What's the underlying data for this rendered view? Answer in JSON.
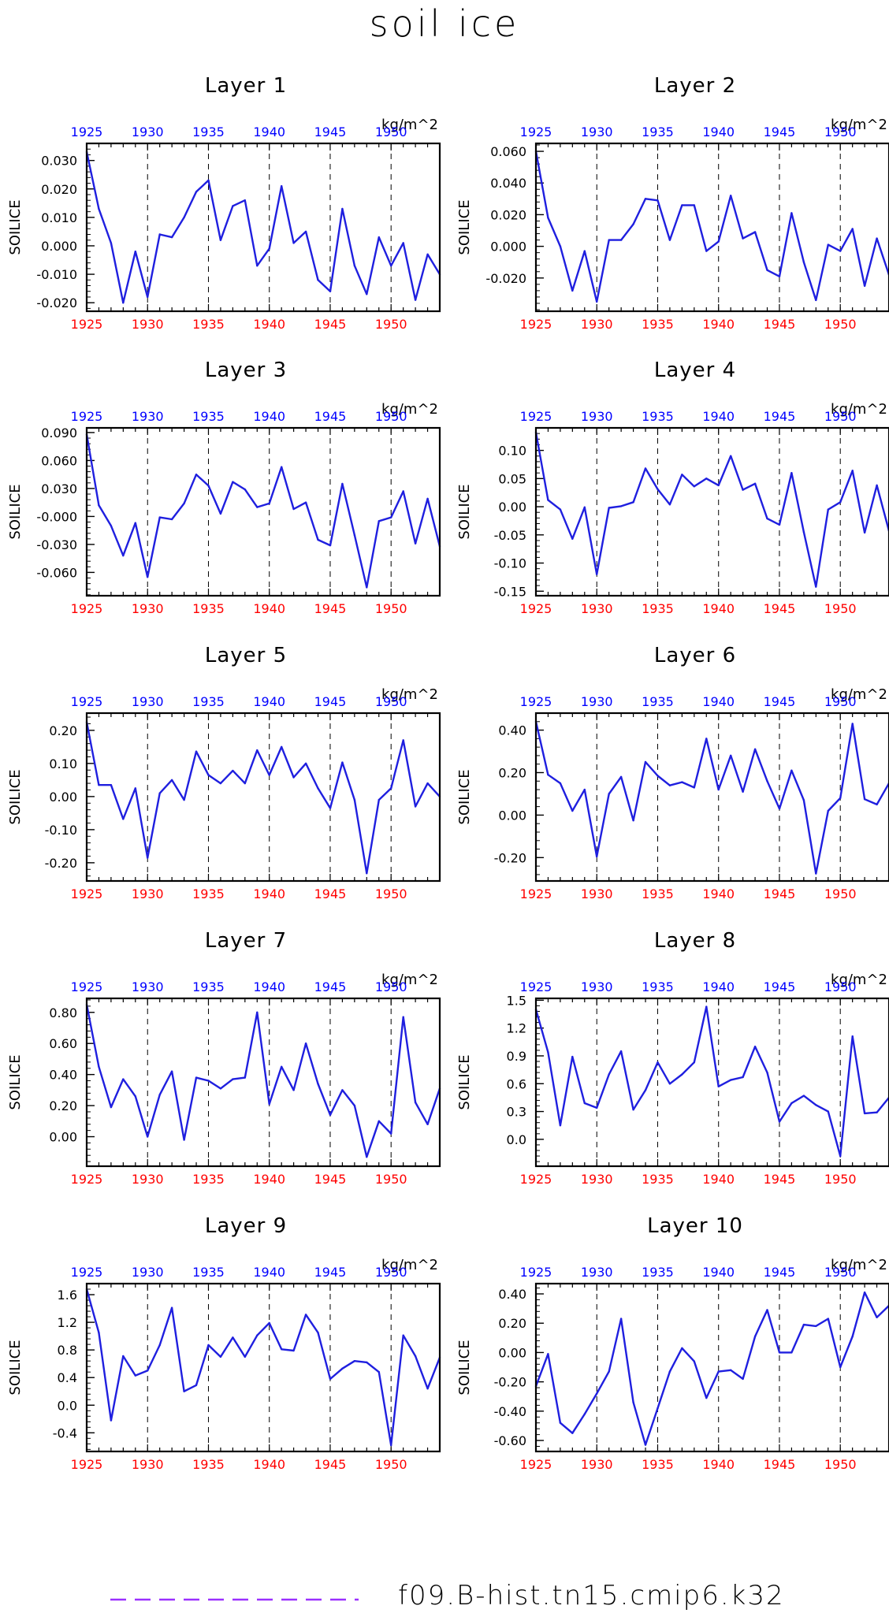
{
  "page": {
    "title": "soil ice",
    "legend_label": "f09.B-hist.tn15.cmip6.k32"
  },
  "colors": {
    "series": "#1f1fdf",
    "top_axis_labels": "#0000ff",
    "bottom_axis_labels": "#ff0000",
    "legend_line": "#9b30ff"
  },
  "chart_data": [
    {
      "type": "line",
      "title": "Layer 1",
      "ylabel": "SOILICE",
      "units": "kg/m^2",
      "x_ticks": [
        1925,
        1930,
        1935,
        1940,
        1945,
        1950
      ],
      "xlim": [
        1925,
        1954
      ],
      "ylim": [
        -0.023,
        0.036
      ],
      "y_ticks": [
        0.03,
        0.02,
        0.01,
        0.0,
        -0.01,
        -0.02
      ],
      "y_tick_labels": [
        "0.030",
        "0.020",
        "0.010",
        "0.000",
        "-0.010",
        "-0.020"
      ],
      "x": [
        1925,
        1926,
        1927,
        1928,
        1929,
        1930,
        1931,
        1932,
        1933,
        1934,
        1935,
        1936,
        1937,
        1938,
        1939,
        1940,
        1941,
        1942,
        1943,
        1944,
        1945,
        1946,
        1947,
        1948,
        1949,
        1950,
        1951,
        1952,
        1953,
        1954
      ],
      "series": [
        {
          "name": "f09.B-hist.tn15.cmip6.k32",
          "values": [
            0.033,
            0.013,
            0.001,
            -0.02,
            -0.002,
            -0.018,
            0.004,
            0.003,
            0.01,
            0.019,
            0.023,
            0.002,
            0.014,
            0.016,
            -0.007,
            -0.001,
            0.021,
            0.001,
            0.005,
            -0.012,
            -0.016,
            0.013,
            -0.007,
            -0.017,
            0.003,
            -0.007,
            0.001,
            -0.019,
            -0.003,
            -0.01
          ]
        }
      ]
    },
    {
      "type": "line",
      "title": "Layer 2",
      "ylabel": "SOILICE",
      "units": "kg/m^2",
      "x_ticks": [
        1925,
        1930,
        1935,
        1940,
        1945,
        1950
      ],
      "xlim": [
        1925,
        1954
      ],
      "ylim": [
        -0.041,
        0.065
      ],
      "y_ticks": [
        0.06,
        0.04,
        0.02,
        0.0,
        -0.02
      ],
      "y_tick_labels": [
        "0.060",
        "0.040",
        "0.020",
        "0.000",
        "-0.020"
      ],
      "x": [
        1925,
        1926,
        1927,
        1928,
        1929,
        1930,
        1931,
        1932,
        1933,
        1934,
        1935,
        1936,
        1937,
        1938,
        1939,
        1940,
        1941,
        1942,
        1943,
        1944,
        1945,
        1946,
        1947,
        1948,
        1949,
        1950,
        1951,
        1952,
        1953,
        1954
      ],
      "series": [
        {
          "name": "f09.B-hist.tn15.cmip6.k32",
          "values": [
            0.06,
            0.018,
            0.0,
            -0.028,
            -0.003,
            -0.035,
            0.004,
            0.004,
            0.014,
            0.03,
            0.029,
            0.004,
            0.026,
            0.026,
            -0.003,
            0.003,
            0.032,
            0.005,
            0.009,
            -0.015,
            -0.019,
            0.021,
            -0.01,
            -0.034,
            0.001,
            -0.003,
            0.011,
            -0.025,
            0.005,
            -0.018
          ]
        }
      ]
    },
    {
      "type": "line",
      "title": "Layer 3",
      "ylabel": "SOILICE",
      "units": "kg/m^2",
      "x_ticks": [
        1925,
        1930,
        1935,
        1940,
        1945,
        1950
      ],
      "xlim": [
        1925,
        1954
      ],
      "ylim": [
        -0.085,
        0.095
      ],
      "y_ticks": [
        0.09,
        0.06,
        0.03,
        0.0,
        -0.03,
        -0.06
      ],
      "y_tick_labels": [
        "0.090",
        "0.060",
        "0.030",
        "-0.000",
        "-0.030",
        "-0.060"
      ],
      "x": [
        1925,
        1926,
        1927,
        1928,
        1929,
        1930,
        1931,
        1932,
        1933,
        1934,
        1935,
        1936,
        1937,
        1938,
        1939,
        1940,
        1941,
        1942,
        1943,
        1944,
        1945,
        1946,
        1947,
        1948,
        1949,
        1950,
        1951,
        1952,
        1953,
        1954
      ],
      "series": [
        {
          "name": "f09.B-hist.tn15.cmip6.k32",
          "values": [
            0.088,
            0.012,
            -0.01,
            -0.042,
            -0.007,
            -0.065,
            -0.001,
            -0.003,
            0.014,
            0.045,
            0.033,
            0.003,
            0.037,
            0.029,
            0.01,
            0.014,
            0.053,
            0.008,
            0.015,
            -0.025,
            -0.031,
            0.035,
            -0.02,
            -0.076,
            -0.005,
            -0.001,
            0.027,
            -0.029,
            0.019,
            -0.032
          ]
        }
      ]
    },
    {
      "type": "line",
      "title": "Layer 4",
      "ylabel": "SOILICE",
      "units": "kg/m^2",
      "x_ticks": [
        1925,
        1930,
        1935,
        1940,
        1945,
        1950
      ],
      "xlim": [
        1925,
        1954
      ],
      "ylim": [
        -0.158,
        0.14
      ],
      "y_ticks": [
        0.1,
        0.05,
        0.0,
        -0.05,
        -0.1,
        -0.15
      ],
      "y_tick_labels": [
        "0.10",
        "0.05",
        "0.00",
        "-0.05",
        "-0.10",
        "-0.15"
      ],
      "x": [
        1925,
        1926,
        1927,
        1928,
        1929,
        1930,
        1931,
        1932,
        1933,
        1934,
        1935,
        1936,
        1937,
        1938,
        1939,
        1940,
        1941,
        1942,
        1943,
        1944,
        1945,
        1946,
        1947,
        1948,
        1949,
        1950,
        1951,
        1952,
        1953,
        1954
      ],
      "series": [
        {
          "name": "f09.B-hist.tn15.cmip6.k32",
          "values": [
            0.132,
            0.012,
            -0.005,
            -0.057,
            -0.001,
            -0.12,
            -0.002,
            0.001,
            0.008,
            0.068,
            0.031,
            0.004,
            0.057,
            0.036,
            0.05,
            0.038,
            0.09,
            0.03,
            0.041,
            -0.021,
            -0.032,
            0.06,
            -0.045,
            -0.142,
            -0.005,
            0.008,
            0.064,
            -0.046,
            0.038,
            -0.043
          ]
        }
      ]
    },
    {
      "type": "line",
      "title": "Layer 5",
      "ylabel": "SOILICE",
      "units": "kg/m^2",
      "x_ticks": [
        1925,
        1930,
        1935,
        1940,
        1945,
        1950
      ],
      "xlim": [
        1925,
        1954
      ],
      "ylim": [
        -0.255,
        0.252
      ],
      "y_ticks": [
        0.2,
        0.1,
        0.0,
        -0.1,
        -0.2
      ],
      "y_tick_labels": [
        "0.20",
        "0.10",
        "0.00",
        "-0.10",
        "-0.20"
      ],
      "x": [
        1925,
        1926,
        1927,
        1928,
        1929,
        1930,
        1931,
        1932,
        1933,
        1934,
        1935,
        1936,
        1937,
        1938,
        1939,
        1940,
        1941,
        1942,
        1943,
        1944,
        1945,
        1946,
        1947,
        1948,
        1949,
        1950,
        1951,
        1952,
        1953,
        1954
      ],
      "series": [
        {
          "name": "f09.B-hist.tn15.cmip6.k32",
          "values": [
            0.225,
            0.035,
            0.035,
            -0.068,
            0.025,
            -0.185,
            0.01,
            0.05,
            -0.01,
            0.136,
            0.065,
            0.04,
            0.078,
            0.04,
            0.14,
            0.065,
            0.15,
            0.058,
            0.1,
            0.025,
            -0.035,
            0.103,
            -0.01,
            -0.232,
            -0.01,
            0.025,
            0.17,
            -0.03,
            0.04,
            0.0
          ]
        }
      ]
    },
    {
      "type": "line",
      "title": "Layer 6",
      "ylabel": "SOILICE",
      "units": "kg/m^2",
      "x_ticks": [
        1925,
        1930,
        1935,
        1940,
        1945,
        1950
      ],
      "xlim": [
        1925,
        1954
      ],
      "ylim": [
        -0.31,
        0.48
      ],
      "y_ticks": [
        0.4,
        0.2,
        0.0,
        -0.2
      ],
      "y_tick_labels": [
        "0.40",
        "0.20",
        "0.00",
        "-0.20"
      ],
      "x": [
        1925,
        1926,
        1927,
        1928,
        1929,
        1930,
        1931,
        1932,
        1933,
        1934,
        1935,
        1936,
        1937,
        1938,
        1939,
        1940,
        1941,
        1942,
        1943,
        1944,
        1945,
        1946,
        1947,
        1948,
        1949,
        1950,
        1951,
        1952,
        1953,
        1954
      ],
      "series": [
        {
          "name": "f09.B-hist.tn15.cmip6.k32",
          "values": [
            0.44,
            0.19,
            0.15,
            0.02,
            0.12,
            -0.195,
            0.1,
            0.18,
            -0.025,
            0.25,
            0.185,
            0.14,
            0.155,
            0.13,
            0.36,
            0.12,
            0.28,
            0.11,
            0.31,
            0.16,
            0.03,
            0.21,
            0.07,
            -0.275,
            0.02,
            0.08,
            0.43,
            0.075,
            0.05,
            0.15
          ]
        }
      ]
    },
    {
      "type": "line",
      "title": "Layer 7",
      "ylabel": "SOILICE",
      "units": "kg/m^2",
      "x_ticks": [
        1925,
        1930,
        1935,
        1940,
        1945,
        1950
      ],
      "xlim": [
        1925,
        1954
      ],
      "ylim": [
        -0.19,
        0.89
      ],
      "y_ticks": [
        0.8,
        0.6,
        0.4,
        0.2,
        0.0
      ],
      "y_tick_labels": [
        "0.80",
        "0.60",
        "0.40",
        "0.20",
        "0.00"
      ],
      "x": [
        1925,
        1926,
        1927,
        1928,
        1929,
        1930,
        1931,
        1932,
        1933,
        1934,
        1935,
        1936,
        1937,
        1938,
        1939,
        1940,
        1941,
        1942,
        1943,
        1944,
        1945,
        1946,
        1947,
        1948,
        1949,
        1950,
        1951,
        1952,
        1953,
        1954
      ],
      "series": [
        {
          "name": "f09.B-hist.tn15.cmip6.k32",
          "values": [
            0.85,
            0.45,
            0.19,
            0.37,
            0.26,
            0.0,
            0.27,
            0.42,
            -0.02,
            0.38,
            0.36,
            0.31,
            0.37,
            0.38,
            0.8,
            0.21,
            0.45,
            0.3,
            0.6,
            0.34,
            0.14,
            0.3,
            0.2,
            -0.13,
            0.1,
            0.02,
            0.77,
            0.22,
            0.08,
            0.31
          ]
        }
      ]
    },
    {
      "type": "line",
      "title": "Layer 8",
      "ylabel": "SOILICE",
      "units": "kg/m^2",
      "x_ticks": [
        1925,
        1930,
        1935,
        1940,
        1945,
        1950
      ],
      "xlim": [
        1925,
        1954
      ],
      "ylim": [
        -0.29,
        1.52
      ],
      "y_ticks": [
        1.5,
        1.2,
        0.9,
        0.6,
        0.3,
        0.0
      ],
      "y_tick_labels": [
        "1.5",
        "1.2",
        "0.9",
        "0.6",
        "0.3",
        "0.0"
      ],
      "x": [
        1925,
        1926,
        1927,
        1928,
        1929,
        1930,
        1931,
        1932,
        1933,
        1934,
        1935,
        1936,
        1937,
        1938,
        1939,
        1940,
        1941,
        1942,
        1943,
        1944,
        1945,
        1946,
        1947,
        1948,
        1949,
        1950,
        1951,
        1952,
        1953,
        1954
      ],
      "series": [
        {
          "name": "f09.B-hist.tn15.cmip6.k32",
          "values": [
            1.4,
            0.94,
            0.15,
            0.89,
            0.39,
            0.34,
            0.7,
            0.95,
            0.32,
            0.53,
            0.83,
            0.6,
            0.7,
            0.83,
            1.43,
            0.57,
            0.64,
            0.67,
            1.0,
            0.72,
            0.19,
            0.39,
            0.47,
            0.37,
            0.3,
            -0.18,
            1.11,
            0.28,
            0.29,
            0.45
          ]
        }
      ]
    },
    {
      "type": "line",
      "title": "Layer 9",
      "ylabel": "SOILICE",
      "units": "kg/m^2",
      "x_ticks": [
        1925,
        1930,
        1935,
        1940,
        1945,
        1950
      ],
      "xlim": [
        1925,
        1954
      ],
      "ylim": [
        -0.67,
        1.76
      ],
      "y_ticks": [
        1.6,
        1.2,
        0.8,
        0.4,
        0.0,
        -0.4
      ],
      "y_tick_labels": [
        "1.6",
        "1.2",
        "0.8",
        "0.4",
        "0.0",
        "-0.4"
      ],
      "x": [
        1925,
        1926,
        1927,
        1928,
        1929,
        1930,
        1931,
        1932,
        1933,
        1934,
        1935,
        1936,
        1937,
        1938,
        1939,
        1940,
        1941,
        1942,
        1943,
        1944,
        1945,
        1946,
        1947,
        1948,
        1949,
        1950,
        1951,
        1952,
        1953,
        1954
      ],
      "series": [
        {
          "name": "f09.B-hist.tn15.cmip6.k32",
          "values": [
            1.68,
            1.05,
            -0.22,
            0.71,
            0.43,
            0.5,
            0.87,
            1.41,
            0.2,
            0.29,
            0.87,
            0.7,
            0.98,
            0.7,
            1.01,
            1.19,
            0.81,
            0.79,
            1.31,
            1.05,
            0.38,
            0.53,
            0.64,
            0.62,
            0.48,
            -0.58,
            1.01,
            0.71,
            0.24,
            0.69
          ]
        }
      ]
    },
    {
      "type": "line",
      "title": "Layer 10",
      "ylabel": "SOILICE",
      "units": "kg/m^2",
      "x_ticks": [
        1925,
        1930,
        1935,
        1940,
        1945,
        1950
      ],
      "xlim": [
        1925,
        1954
      ],
      "ylim": [
        -0.675,
        0.47
      ],
      "y_ticks": [
        0.4,
        0.2,
        0.0,
        -0.2,
        -0.4,
        -0.6
      ],
      "y_tick_labels": [
        "0.40",
        "0.20",
        "0.00",
        "-0.20",
        "-0.40",
        "-0.60"
      ],
      "x": [
        1925,
        1926,
        1927,
        1928,
        1929,
        1930,
        1931,
        1932,
        1933,
        1934,
        1935,
        1936,
        1937,
        1938,
        1939,
        1940,
        1941,
        1942,
        1943,
        1944,
        1945,
        1946,
        1947,
        1948,
        1949,
        1950,
        1951,
        1952,
        1953,
        1954
      ],
      "series": [
        {
          "name": "f09.B-hist.tn15.cmip6.k32",
          "values": [
            -0.23,
            -0.01,
            -0.48,
            -0.55,
            -0.42,
            -0.28,
            -0.13,
            0.23,
            -0.34,
            -0.63,
            -0.38,
            -0.13,
            0.03,
            -0.06,
            -0.31,
            -0.13,
            -0.12,
            -0.18,
            0.11,
            0.29,
            0.0,
            0.0,
            0.19,
            0.18,
            0.23,
            -0.1,
            0.11,
            0.41,
            0.24,
            0.32
          ]
        }
      ]
    }
  ]
}
